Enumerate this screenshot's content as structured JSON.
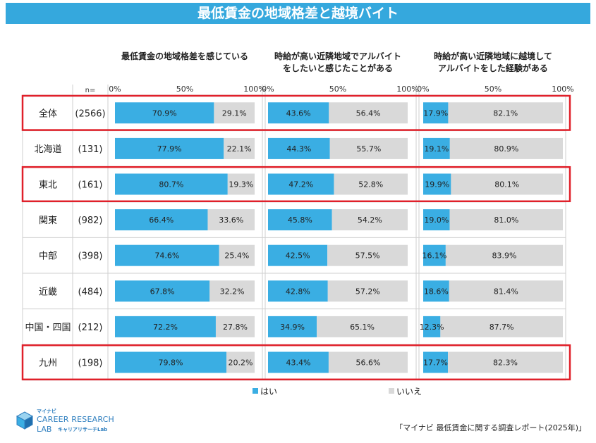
{
  "title": "最低賃金の地域格差と越境バイト",
  "n_label": "n=",
  "colors": {
    "yes": "#3aaee3",
    "no": "#d9d9d9",
    "highlight": "#e0202a",
    "title_bg": "#35a8dd"
  },
  "highlighted_rows": [
    "全体",
    "東北",
    "九州"
  ],
  "source": "「マイナビ 最低賃金に関する調査レポート(2025年)」",
  "logo": {
    "line1": "マイナビ",
    "line2": "CAREER RESEARCH",
    "line3": "LAB",
    "line4": "キャリアリサーチLab"
  },
  "chart_data": {
    "type": "bar",
    "stacked": true,
    "orientation": "horizontal",
    "categories": [
      "全体",
      "北海道",
      "東北",
      "関東",
      "中部",
      "近畿",
      "中国・四国",
      "九州"
    ],
    "n": [
      "(2566)",
      "(131)",
      "(161)",
      "(982)",
      "(398)",
      "(484)",
      "(212)",
      "(198)"
    ],
    "xlim": [
      0,
      100
    ],
    "ticks": [
      "0%",
      "50%",
      "100%"
    ],
    "panels": [
      {
        "header": [
          "最低賃金の地域格差を感じている"
        ],
        "series": [
          {
            "name": "はい",
            "values": [
              70.9,
              77.9,
              80.7,
              66.4,
              74.6,
              67.8,
              72.2,
              79.8
            ]
          },
          {
            "name": "いいえ",
            "values": [
              29.1,
              22.1,
              19.3,
              33.6,
              25.4,
              32.2,
              27.8,
              20.2
            ]
          }
        ]
      },
      {
        "header": [
          "時給が高い近隣地域でアルバイト",
          "をしたいと感じたことがある"
        ],
        "series": [
          {
            "name": "はい",
            "values": [
              43.6,
              44.3,
              47.2,
              45.8,
              42.5,
              42.8,
              34.9,
              43.4
            ]
          },
          {
            "name": "いいえ",
            "values": [
              56.4,
              55.7,
              52.8,
              54.2,
              57.5,
              57.2,
              65.1,
              56.6
            ]
          }
        ]
      },
      {
        "header": [
          "時給が高い近隣地域に越境して",
          "アルバイトをした経験がある"
        ],
        "series": [
          {
            "name": "はい",
            "values": [
              17.9,
              19.1,
              19.9,
              19.0,
              16.1,
              18.6,
              12.3,
              17.7
            ]
          },
          {
            "name": "いいえ",
            "values": [
              82.1,
              80.9,
              80.1,
              81.0,
              83.9,
              81.4,
              87.7,
              82.3
            ]
          }
        ]
      }
    ],
    "legend": [
      "はい",
      "いいえ"
    ],
    "legend_position": "bottom"
  }
}
